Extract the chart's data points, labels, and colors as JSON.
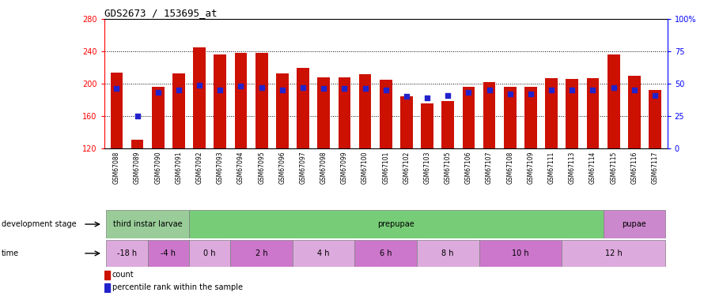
{
  "title": "GDS2673 / 153695_at",
  "samples": [
    "GSM67088",
    "GSM67089",
    "GSM67090",
    "GSM67091",
    "GSM67092",
    "GSM67093",
    "GSM67094",
    "GSM67095",
    "GSM67096",
    "GSM67097",
    "GSM67098",
    "GSM67099",
    "GSM67100",
    "GSM67101",
    "GSM67102",
    "GSM67103",
    "GSM67105",
    "GSM67106",
    "GSM67107",
    "GSM67108",
    "GSM67109",
    "GSM67111",
    "GSM67113",
    "GSM67114",
    "GSM67115",
    "GSM67116",
    "GSM67117"
  ],
  "counts": [
    214,
    130,
    196,
    213,
    245,
    236,
    238,
    238,
    213,
    220,
    208,
    208,
    212,
    205,
    184,
    175,
    178,
    196,
    202,
    196,
    196,
    207,
    206,
    207,
    236,
    210,
    192
  ],
  "percentile_ranks": [
    46,
    25,
    43,
    45,
    49,
    45,
    48,
    47,
    45,
    47,
    46,
    46,
    46,
    45,
    40,
    39,
    41,
    43,
    45,
    42,
    42,
    45,
    45,
    45,
    47,
    45,
    41
  ],
  "baseline": 120,
  "ylim_left": [
    120,
    280
  ],
  "ylim_right": [
    0,
    100
  ],
  "left_ticks": [
    120,
    160,
    200,
    240,
    280
  ],
  "right_ticks": [
    0,
    25,
    50,
    75,
    100
  ],
  "right_tick_labels": [
    "0",
    "25",
    "50",
    "75",
    "100%"
  ],
  "bar_color": "#cc1100",
  "dot_color": "#2222cc",
  "bar_width": 0.6,
  "development_stages": [
    {
      "label": "third instar larvae",
      "start": 0,
      "end": 4,
      "color": "#99cc99"
    },
    {
      "label": "prepupae",
      "start": 4,
      "end": 24,
      "color": "#77cc77"
    },
    {
      "label": "pupae",
      "start": 24,
      "end": 27,
      "color": "#cc88cc"
    }
  ],
  "time_labels": [
    {
      "label": "-18 h",
      "start": 0,
      "end": 2,
      "color": "#ddaadd"
    },
    {
      "label": "-4 h",
      "start": 2,
      "end": 4,
      "color": "#cc77cc"
    },
    {
      "label": "0 h",
      "start": 4,
      "end": 6,
      "color": "#ddaadd"
    },
    {
      "label": "2 h",
      "start": 6,
      "end": 9,
      "color": "#cc77cc"
    },
    {
      "label": "4 h",
      "start": 9,
      "end": 12,
      "color": "#ddaadd"
    },
    {
      "label": "6 h",
      "start": 12,
      "end": 15,
      "color": "#cc77cc"
    },
    {
      "label": "8 h",
      "start": 15,
      "end": 18,
      "color": "#ddaadd"
    },
    {
      "label": "10 h",
      "start": 18,
      "end": 22,
      "color": "#cc77cc"
    },
    {
      "label": "12 h",
      "start": 22,
      "end": 27,
      "color": "#ddaadd"
    }
  ],
  "xlabel_area_color": "#cccccc",
  "gridline_color": "#000000",
  "fig_width": 8.9,
  "fig_height": 3.75,
  "dpi": 100
}
